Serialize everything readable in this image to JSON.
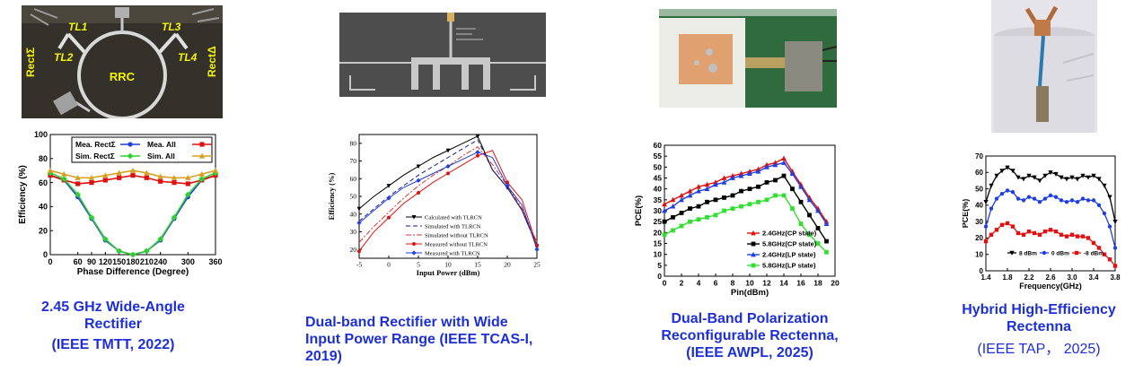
{
  "panels": [
    {
      "photo_labels": {
        "rect_sigma": "RectΣ",
        "tl2": "TL2",
        "tl1": "TL1",
        "rrc": "RRC",
        "tl3": "TL3",
        "tl4": "TL4",
        "rect_delta": "RectΔ"
      },
      "caption": {
        "line1": "2.45 GHz Wide-Angle",
        "line2": "Rectifier",
        "line3": "(IEEE TMTT, 2022)"
      }
    },
    {
      "caption": {
        "line1": "Dual-band Rectifier with Wide",
        "line2": "Input Power Range (IEEE TCAS-I,",
        "line3": "2019)"
      }
    },
    {
      "caption": {
        "line1": "Dual-Band Polarization",
        "line2": "Reconfigurable Rectenna,",
        "line3": "(IEEE AWPL, 2025)"
      }
    },
    {
      "caption": {
        "line1": "Hybrid High-Efficiency",
        "line2": "Rectenna",
        "line3": "(IEEE TAP， 2025)"
      }
    }
  ],
  "chart_data": [
    {
      "type": "line",
      "xlabel": "Phase Difference (Degree)",
      "ylabel": "Efficiency (%)",
      "xlim": [
        0,
        360
      ],
      "ylim": [
        0,
        100
      ],
      "xticks": [
        "0",
        "60",
        "90",
        "120",
        "150",
        "180",
        "210",
        "240",
        "300",
        "360"
      ],
      "yticks": [
        "0",
        "20",
        "40",
        "60",
        "80",
        "100"
      ],
      "x": [
        0,
        30,
        60,
        90,
        120,
        150,
        180,
        210,
        240,
        270,
        300,
        330,
        360
      ],
      "series": [
        {
          "name": "Mea. RectΣ",
          "color": "#1f3fe0",
          "marker": "circle",
          "values": [
            66,
            62,
            48,
            30,
            12,
            3,
            0,
            3,
            12,
            30,
            48,
            62,
            66
          ]
        },
        {
          "name": "Mea. All",
          "color": "#e01010",
          "marker": "square",
          "values": [
            66,
            62,
            59,
            60,
            62,
            64,
            66,
            64,
            61,
            60,
            59,
            62,
            66
          ]
        },
        {
          "name": "Sim. RectΣ",
          "color": "#2fd030",
          "marker": "diamond",
          "values": [
            68,
            63,
            50,
            31,
            13,
            3,
            0,
            3,
            13,
            31,
            50,
            63,
            68
          ]
        },
        {
          "name": "Sim. All",
          "color": "#d8a020",
          "marker": "triangle",
          "values": [
            70,
            67,
            64,
            64,
            66,
            68,
            70,
            68,
            65,
            64,
            64,
            67,
            70
          ]
        }
      ],
      "legend": "top"
    },
    {
      "type": "line",
      "xlabel": "Input Power (dBm)",
      "ylabel": "Efficiency (%)",
      "xlim": [
        -5,
        25
      ],
      "ylim": [
        15,
        85
      ],
      "xticks": [
        "-5",
        "0",
        "5",
        "10",
        "15",
        "20",
        "25"
      ],
      "yticks": [
        "20",
        "30",
        "40",
        "50",
        "60",
        "70",
        "80"
      ],
      "x": [
        -5,
        -2.5,
        0,
        2.5,
        5,
        7.5,
        10,
        12.5,
        15,
        17.5,
        20,
        22.5,
        25
      ],
      "series": [
        {
          "name": "Calculated with TLRCN",
          "color": "#000000",
          "dash": "",
          "marker": "triangle-down",
          "values": [
            43,
            50,
            56,
            62,
            67,
            72,
            76,
            80,
            84,
            65,
            55,
            42,
            22
          ]
        },
        {
          "name": "Simulated with TLRCN",
          "color": "#1a1a8a",
          "dash": "5,3",
          "marker": "none",
          "values": [
            36,
            43,
            50,
            56,
            62,
            67,
            72,
            77,
            82,
            65,
            55,
            42,
            22
          ]
        },
        {
          "name": "Simulated without TLRCN",
          "color": "#e03030",
          "dash": "6,2,2,2",
          "marker": "none",
          "values": [
            24,
            33,
            41,
            49,
            56,
            62,
            67,
            73,
            78,
            68,
            56,
            43,
            24
          ]
        },
        {
          "name": "Measured without TLRCN",
          "color": "#e01010",
          "dash": "",
          "marker": "circle",
          "values": [
            19,
            30,
            38,
            46,
            52,
            58,
            63,
            68,
            73,
            76,
            58,
            48,
            22
          ]
        },
        {
          "name": "Measured with TLRCN",
          "color": "#1f3fe0",
          "dash": "",
          "marker": "diamond",
          "values": [
            35,
            42,
            49,
            55,
            59,
            63,
            67,
            71,
            75,
            72,
            56,
            45,
            20
          ]
        }
      ],
      "legend": "bottom-center"
    },
    {
      "type": "line",
      "xlabel": "Pin(dBm)",
      "ylabel": "PCE(%)",
      "xlim": [
        0,
        20
      ],
      "ylim": [
        0,
        60
      ],
      "xticks": [
        "0",
        "2",
        "4",
        "6",
        "8",
        "10",
        "12",
        "14",
        "16",
        "18",
        "20"
      ],
      "yticks": [
        "0",
        "5",
        "10",
        "15",
        "20",
        "25",
        "30",
        "35",
        "40",
        "45",
        "50",
        "55",
        "60"
      ],
      "x": [
        0,
        1,
        2,
        3,
        4,
        5,
        6,
        7,
        8,
        9,
        10,
        11,
        12,
        13,
        14,
        15,
        16,
        17,
        18,
        19
      ],
      "series": [
        {
          "name": "2.4GHz(CP state)",
          "color": "#e01010",
          "marker": "triangle",
          "values": [
            33,
            35,
            37,
            39,
            41,
            42,
            43,
            45,
            46,
            47,
            48,
            49,
            51,
            52,
            54,
            48,
            42,
            36,
            31,
            25
          ]
        },
        {
          "name": "5.8GHz(CP state)",
          "color": "#000000",
          "marker": "square",
          "values": [
            25,
            27,
            29,
            31,
            32,
            34,
            35,
            36,
            37,
            39,
            40,
            41,
            43,
            44,
            46,
            40,
            34,
            28,
            22,
            16
          ]
        },
        {
          "name": "2.4GHz(LP state)",
          "color": "#1f3fe0",
          "marker": "triangle",
          "values": [
            30,
            32,
            35,
            37,
            39,
            40,
            42,
            43,
            45,
            46,
            47,
            48,
            50,
            51,
            52,
            47,
            41,
            35,
            30,
            24
          ]
        },
        {
          "name": "5.8GHz(LP state)",
          "color": "#2fe030",
          "marker": "square",
          "values": [
            19,
            21,
            23,
            25,
            26,
            27,
            28,
            30,
            31,
            32,
            33,
            34,
            35,
            37,
            37,
            31,
            24,
            19,
            15,
            11
          ]
        }
      ],
      "legend": "bottom-right"
    },
    {
      "type": "line",
      "xlabel": "Frequency(GHz)",
      "ylabel": "PCE(%)",
      "xlim": [
        1.4,
        3.8
      ],
      "ylim": [
        0,
        70
      ],
      "xticks": [
        "1.4",
        "1.8",
        "2.2",
        "2.6",
        "3.0",
        "3.4",
        "3.8"
      ],
      "yticks": [
        "0",
        "10",
        "20",
        "30",
        "40",
        "50",
        "60",
        "70"
      ],
      "x": [
        1.4,
        1.5,
        1.6,
        1.7,
        1.8,
        1.9,
        2.0,
        2.1,
        2.2,
        2.3,
        2.4,
        2.5,
        2.6,
        2.7,
        2.8,
        2.9,
        3.0,
        3.1,
        3.2,
        3.3,
        3.4,
        3.5,
        3.6,
        3.7,
        3.8
      ],
      "series": [
        {
          "name": "8 dBm",
          "color": "#000000",
          "marker": "triangle-down",
          "values": [
            42,
            52,
            58,
            61,
            63,
            61,
            57,
            56,
            58,
            57,
            55,
            58,
            60,
            59,
            57,
            56,
            57,
            56,
            58,
            57,
            58,
            56,
            52,
            45,
            30
          ]
        },
        {
          "name": "0 dBm",
          "color": "#1f3fe0",
          "marker": "circle",
          "values": [
            27,
            38,
            44,
            47,
            49,
            48,
            44,
            43,
            45,
            44,
            42,
            44,
            46,
            45,
            43,
            42,
            43,
            42,
            44,
            43,
            43,
            40,
            35,
            27,
            14
          ]
        },
        {
          "name": "-8 dBm",
          "color": "#e01010",
          "marker": "square",
          "values": [
            18,
            22,
            25,
            28,
            29,
            27,
            23,
            22,
            24,
            23,
            22,
            24,
            25,
            24,
            22,
            21,
            22,
            21,
            21,
            20,
            17,
            14,
            10,
            7,
            3
          ]
        }
      ],
      "legend": "bottom-center"
    }
  ]
}
